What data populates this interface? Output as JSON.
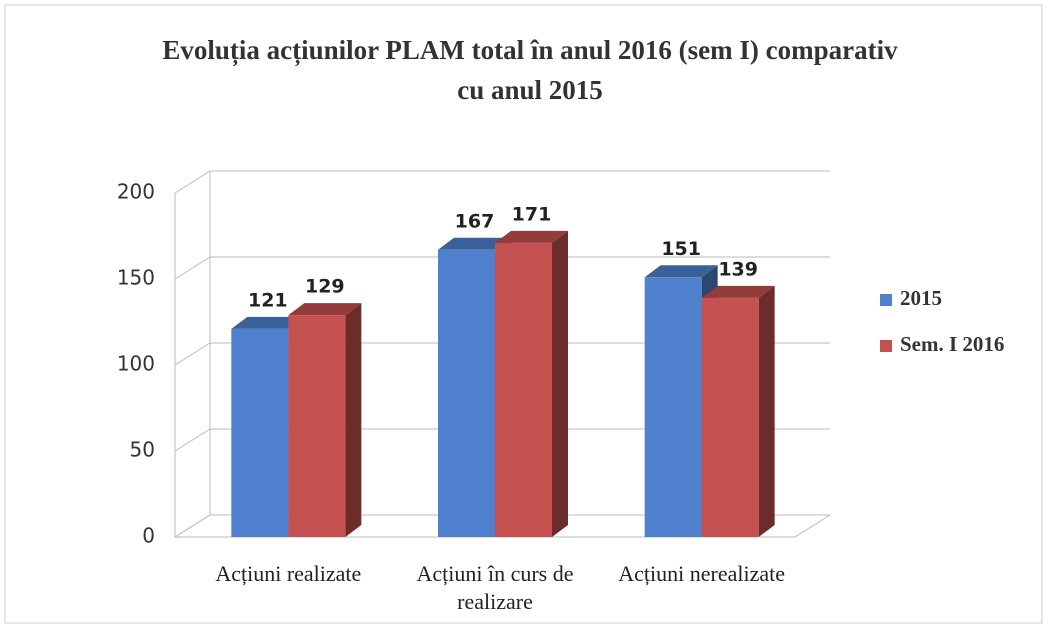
{
  "chart_data": {
    "type": "bar",
    "title": "Evoluția acțiunilor PLAM total în anul 2016 (sem I) comparativ cu anul 2015",
    "categories": [
      "Acțiuni realizate",
      "Acțiuni în curs de realizare",
      "Acțiuni nerealizate"
    ],
    "series": [
      {
        "name": "2015",
        "color": "#4f81cf",
        "values": [
          121,
          167,
          151
        ]
      },
      {
        "name": "Sem. I 2016",
        "color": "#c4504f",
        "values": [
          129,
          171,
          139
        ]
      }
    ],
    "ylim": [
      0,
      200
    ],
    "yticks": [
      0,
      50,
      100,
      150,
      200
    ],
    "grid": true,
    "legend": "right"
  }
}
